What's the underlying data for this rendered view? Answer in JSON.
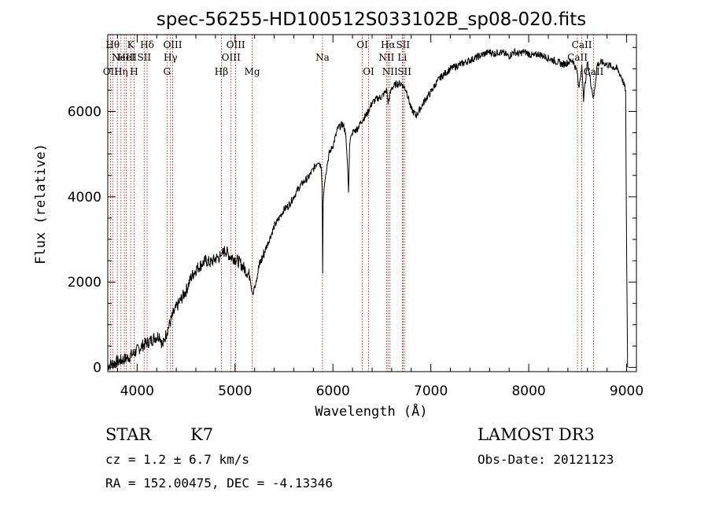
{
  "chart_data": {
    "type": "line",
    "title": "spec-56255-HD100512S033102B_sp08-020.fits",
    "xlabel": "Wavelength (Å)",
    "ylabel": "Flux (relative)",
    "xlim": [
      3700,
      9100
    ],
    "ylim": [
      -100,
      7800
    ],
    "xticks": [
      4000,
      5000,
      6000,
      7000,
      8000,
      9000
    ],
    "yticks": [
      0,
      2000,
      4000,
      6000
    ],
    "grid": false,
    "series": [
      {
        "name": "flux",
        "x": [
          3700,
          3760,
          3820,
          3880,
          3940,
          4000,
          4060,
          4120,
          4180,
          4230,
          4260,
          4300,
          4330,
          4360,
          4400,
          4450,
          4500,
          4550,
          4600,
          4650,
          4700,
          4750,
          4800,
          4850,
          4870,
          4900,
          4950,
          5000,
          5050,
          5100,
          5150,
          5170,
          5185,
          5200,
          5250,
          5300,
          5350,
          5400,
          5450,
          5500,
          5550,
          5600,
          5650,
          5700,
          5750,
          5800,
          5850,
          5880,
          5890,
          5895,
          5900,
          5910,
          5930,
          5960,
          6000,
          6050,
          6100,
          6130,
          6150,
          6160,
          6170,
          6180,
          6200,
          6250,
          6300,
          6350,
          6400,
          6450,
          6500,
          6550,
          6563,
          6600,
          6650,
          6700,
          6750,
          6800,
          6850,
          6900,
          6950,
          7000,
          7050,
          7100,
          7150,
          7200,
          7250,
          7300,
          7350,
          7400,
          7450,
          7500,
          7550,
          7600,
          7650,
          7700,
          7750,
          7800,
          7850,
          7900,
          7950,
          8000,
          8050,
          8100,
          8150,
          8200,
          8250,
          8300,
          8350,
          8400,
          8450,
          8498,
          8510,
          8542,
          8560,
          8600,
          8662,
          8700,
          8750,
          8800,
          8850,
          8900,
          8950,
          8990,
          9000,
          9010
        ],
        "y": [
          50,
          100,
          150,
          200,
          280,
          400,
          520,
          600,
          700,
          760,
          500,
          820,
          1000,
          1200,
          1400,
          1600,
          1800,
          2100,
          2300,
          2400,
          2500,
          2450,
          2550,
          2600,
          2650,
          2750,
          2600,
          2550,
          2450,
          2300,
          2150,
          1800,
          1700,
          1950,
          2400,
          2700,
          3000,
          3300,
          3500,
          3700,
          3800,
          4000,
          4200,
          4350,
          4450,
          4650,
          4850,
          4700,
          4200,
          2200,
          3900,
          4200,
          4600,
          5000,
          5200,
          5600,
          5700,
          5500,
          4700,
          4100,
          5200,
          5400,
          5500,
          5600,
          5800,
          5950,
          6200,
          6300,
          6350,
          6500,
          6200,
          6550,
          6650,
          6650,
          6500,
          6050,
          5900,
          6100,
          6300,
          6450,
          6650,
          6800,
          6900,
          7000,
          7050,
          7100,
          7150,
          7200,
          7250,
          7300,
          7350,
          7400,
          7350,
          7400,
          7350,
          7300,
          7400,
          7350,
          7400,
          7350,
          7300,
          7350,
          7300,
          7250,
          7200,
          7150,
          7100,
          7150,
          7200,
          6900,
          6500,
          7100,
          6300,
          7150,
          6300,
          7100,
          7150,
          7100,
          7050,
          7000,
          6800,
          6500,
          2600,
          0
        ]
      }
    ],
    "lines": [
      {
        "wave": 3727,
        "labels": [
          "OII"
        ],
        "row": 2
      },
      {
        "wave": 3750,
        "labels": [
          "Hθ"
        ],
        "row": 0
      },
      {
        "wave": 3798,
        "labels": [],
        "row": 0
      },
      {
        "wave": 3835,
        "labels": [
          "Hη"
        ],
        "row": 2
      },
      {
        "wave": 3869,
        "labels": [
          "NeIII"
        ],
        "row": 1
      },
      {
        "wave": 3889,
        "labels": [
          "HeI"
        ],
        "row": 1
      },
      {
        "wave": 3934,
        "labels": [
          "K"
        ],
        "row": 0
      },
      {
        "wave": 3969,
        "labels": [
          "H"
        ],
        "row": 2
      },
      {
        "wave": 4072,
        "labels": [
          "SII"
        ],
        "row": 1
      },
      {
        "wave": 4102,
        "labels": [
          "Hδ"
        ],
        "row": 0
      },
      {
        "wave": 4305,
        "labels": [
          "G"
        ],
        "row": 2
      },
      {
        "wave": 4341,
        "labels": [
          "Hγ"
        ],
        "row": 1
      },
      {
        "wave": 4363,
        "labels": [
          "OIII"
        ],
        "row": 0
      },
      {
        "wave": 4861,
        "labels": [
          "Hβ"
        ],
        "row": 2
      },
      {
        "wave": 4959,
        "labels": [
          "OIII"
        ],
        "row": 1
      },
      {
        "wave": 5007,
        "labels": [
          "OIII"
        ],
        "row": 0
      },
      {
        "wave": 5175,
        "labels": [
          "Mg"
        ],
        "row": 2
      },
      {
        "wave": 5893,
        "labels": [
          "Na"
        ],
        "row": 1
      },
      {
        "wave": 6300,
        "labels": [
          "OI"
        ],
        "row": 0
      },
      {
        "wave": 6364,
        "labels": [
          "OI"
        ],
        "row": 2
      },
      {
        "wave": 6548,
        "labels": [
          "NII"
        ],
        "row": 1
      },
      {
        "wave": 6563,
        "labels": [
          "Hα"
        ],
        "row": 0
      },
      {
        "wave": 6583,
        "labels": [
          "NII"
        ],
        "row": 2
      },
      {
        "wave": 6708,
        "labels": [
          "Li"
        ],
        "row": 1
      },
      {
        "wave": 6716,
        "labels": [
          "SII"
        ],
        "row": 0
      },
      {
        "wave": 6731,
        "labels": [
          "SII"
        ],
        "row": 2
      },
      {
        "wave": 8498,
        "labels": [
          "CaII"
        ],
        "row": 1
      },
      {
        "wave": 8542,
        "labels": [
          "CaII"
        ],
        "row": 0
      },
      {
        "wave": 8662,
        "labels": [
          "CaII"
        ],
        "row": 2
      }
    ],
    "line_color": "#aa0000",
    "spectrum_color": "#000000"
  },
  "info": {
    "object_class": "STAR",
    "subclass": "K7",
    "survey": "LAMOST DR3",
    "cz": "cz = 1.2 ± 6.7 km/s",
    "obs_date": "Obs-Date: 20121123",
    "coords": "RA = 152.00475, DEC =  -4.13346"
  }
}
